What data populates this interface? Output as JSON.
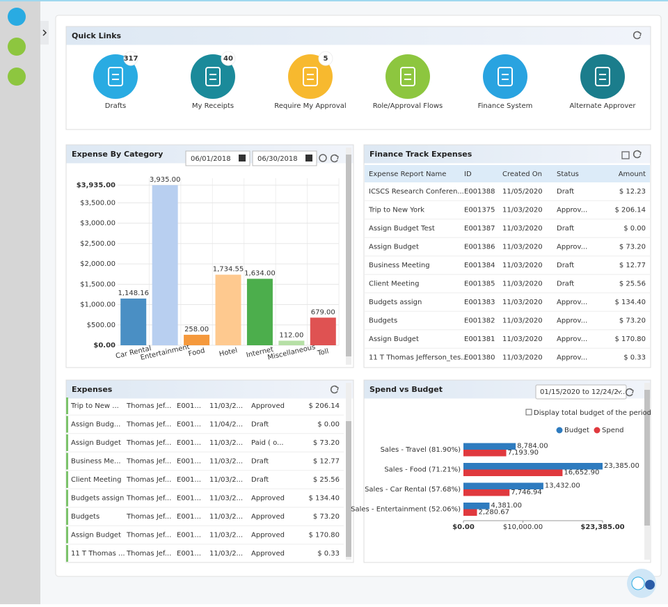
{
  "quick_links": {
    "title": "Quick Links",
    "items": [
      {
        "label": "Drafts",
        "badge": 317,
        "color": "#29abe2"
      },
      {
        "label": "My Receipts",
        "badge": 40,
        "color": "#1b8a9a"
      },
      {
        "label": "Require My Approval",
        "badge": 5,
        "color": "#f7b92f"
      },
      {
        "label": "Role/Approval Flows",
        "color": "#8dc63f"
      },
      {
        "label": "Finance System",
        "color": "#29a3e0"
      },
      {
        "label": "Alternate Approver",
        "color": "#1b7d8c"
      }
    ]
  },
  "expense_by_category": {
    "title": "Expense By Category",
    "start_date": "06/01/2018",
    "end_date": "06/30/2018",
    "chart_data": {
      "type": "bar",
      "categories": [
        "Car Rental",
        "Entertainment",
        "Food",
        "Hotel",
        "Internet",
        "Miscellaneous",
        "Toll"
      ],
      "values": [
        1148.16,
        3935,
        258,
        1734.55,
        1634,
        112,
        679
      ],
      "value_labels": [
        "1,148.16",
        "3,935.00",
        "258.00",
        "1,734.55",
        "1,634.00",
        "112.00",
        "679.00"
      ],
      "colors": [
        "#4a8fc4",
        "#b8cff0",
        "#f5993c",
        "#fec98f",
        "#4cae4c",
        "#b6e0a6",
        "#df5252"
      ],
      "ylim": [
        0,
        3935
      ],
      "yticks": [
        {
          "value": 0,
          "label": "$0.00"
        },
        {
          "value": 500,
          "label": "$500.00"
        },
        {
          "value": 1000,
          "label": "$1,000.00"
        },
        {
          "value": 1500,
          "label": "$1,500.00"
        },
        {
          "value": 2000,
          "label": "$2,000.00"
        },
        {
          "value": 2500,
          "label": "$2,500.00"
        },
        {
          "value": 3000,
          "label": "$3,000.00"
        },
        {
          "value": 3500,
          "label": "$3,500.00"
        },
        {
          "value": 3935,
          "label": "$3,935.00"
        }
      ],
      "grid": true
    }
  },
  "finance_track": {
    "title": "Finance Track Expenses",
    "columns": [
      "Expense Report Name",
      "ID",
      "Created On",
      "Status",
      "Amount"
    ],
    "rows": [
      [
        "ICSCS Research Conferen...",
        "E001388",
        "11/05/2020",
        "Draft",
        "$ 12.23"
      ],
      [
        "Trip to New York",
        "E001375",
        "11/03/2020",
        "Approv...",
        "$ 206.14"
      ],
      [
        "Assign Budget Test",
        "E001387",
        "11/03/2020",
        "Draft",
        "$ 0.00"
      ],
      [
        "Assign Budget",
        "E001386",
        "11/03/2020",
        "Approv...",
        "$ 73.20"
      ],
      [
        "Business Meeting",
        "E001384",
        "11/03/2020",
        "Draft",
        "$ 12.77"
      ],
      [
        "Client Meeting",
        "E001385",
        "11/03/2020",
        "Draft",
        "$ 25.56"
      ],
      [
        "Budgets assign",
        "E001383",
        "11/03/2020",
        "Approv...",
        "$ 134.40"
      ],
      [
        "Budgets",
        "E001382",
        "11/03/2020",
        "Approv...",
        "$ 73.20"
      ],
      [
        "Assign Budget",
        "E001381",
        "11/03/2020",
        "Approv...",
        "$ 170.80"
      ],
      [
        "11 T Thomas Jefferson_tes...",
        "E001380",
        "11/03/2020",
        "Approv...",
        "$ 0.33"
      ]
    ]
  },
  "expenses": {
    "title": "Expenses",
    "rows": [
      [
        "Trip to New ...",
        "Thomas Jef...",
        "E001...",
        "11/03/2...",
        "Approved",
        "$ 206.14"
      ],
      [
        "Assign Budg...",
        "Thomas Jef...",
        "E001...",
        "11/04/2...",
        "Draft",
        "$ 0.00"
      ],
      [
        "Assign Budget",
        "Thomas Jef...",
        "E001...",
        "11/03/2...",
        "Paid ( o...",
        "$ 73.20"
      ],
      [
        "Business Me...",
        "Thomas Jef...",
        "E001...",
        "11/03/2...",
        "Draft",
        "$ 12.77"
      ],
      [
        "Client Meeting",
        "Thomas Jef...",
        "E001...",
        "11/03/2...",
        "Draft",
        "$ 25.56"
      ],
      [
        "Budgets assign",
        "Thomas Jef...",
        "E001...",
        "11/03/2...",
        "Approved",
        "$ 134.40"
      ],
      [
        "Budgets",
        "Thomas Jef...",
        "E001...",
        "11/03/2...",
        "Approved",
        "$ 73.20"
      ],
      [
        "Assign Budget",
        "Thomas Jef...",
        "E001...",
        "11/03/2...",
        "Approved",
        "$ 170.80"
      ],
      [
        "11 T Thomas ...",
        "Thomas Jef...",
        "E001...",
        "11/03/2...",
        "Approved",
        "$ 0.33"
      ]
    ]
  },
  "spend_vs_budget": {
    "title": "Spend vs Budget",
    "period": "01/15/2020 to 12/24/2...",
    "checkbox_label": "Display total budget of the period",
    "chart_data": {
      "type": "hbar",
      "legend": "top-right",
      "categories": [
        "Sales - Travel (81.90%)",
        "Sales - Food (71.21%)",
        "Sales - Car Rental (57.68%)",
        "Sales - Entertainment (52.06%)"
      ],
      "series": [
        {
          "name": "Budget",
          "color": "#2e7bbf",
          "values": [
            8784,
            23385,
            13432,
            4381
          ],
          "value_labels": [
            "8,784.00",
            "23,385.00",
            "13,432.00",
            "4,381.00"
          ]
        },
        {
          "name": "Spend",
          "color": "#e0393e",
          "values": [
            7193.9,
            16652.9,
            7746.94,
            2280.67
          ],
          "value_labels": [
            "7,193.90",
            "16,652.90",
            "7,746.94",
            "2,280.67"
          ]
        }
      ],
      "xlim": [
        0,
        23385
      ],
      "xticks": [
        {
          "value": 0,
          "label": "$0.00"
        },
        {
          "value": 10000,
          "label": "$10,000.00"
        },
        {
          "value": 23385,
          "label": "$23,385.00"
        }
      ]
    }
  }
}
